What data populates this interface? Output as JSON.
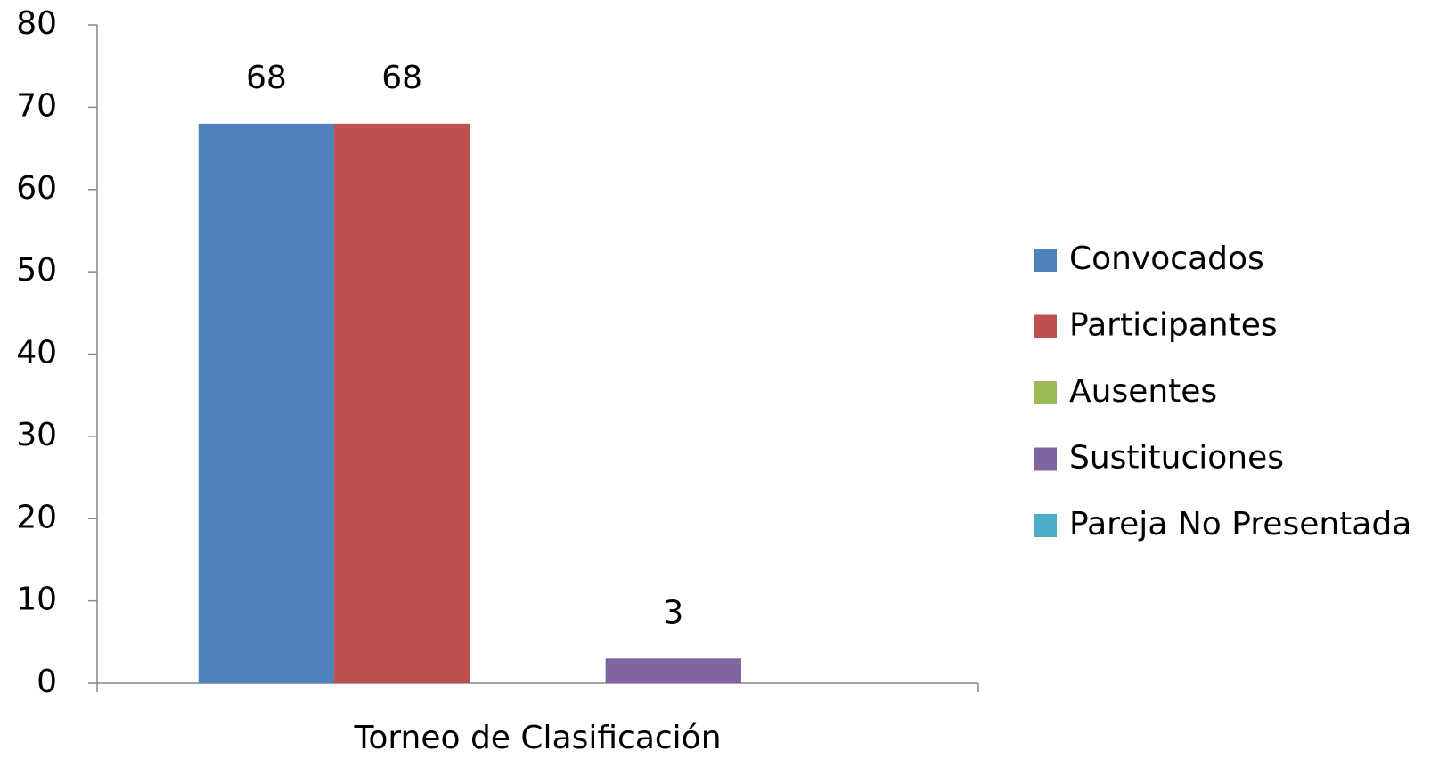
{
  "chart_data": {
    "type": "bar",
    "categories": [
      "Torneo de Clasificación"
    ],
    "series": [
      {
        "name": "Convocados",
        "color": "#4f81bd",
        "values": [
          68
        ]
      },
      {
        "name": "Participantes",
        "color": "#c0504d",
        "values": [
          68
        ]
      },
      {
        "name": "Ausentes",
        "color": "#9bbb59",
        "values": [
          null
        ]
      },
      {
        "name": "Sustituciones",
        "color": "#8064a2",
        "values": [
          3
        ]
      },
      {
        "name": "Pareja No Presentada",
        "color": "#4bacc6",
        "values": [
          null
        ]
      }
    ],
    "ylim": [
      0,
      80
    ],
    "yticks": [
      0,
      10,
      20,
      30,
      40,
      50,
      60,
      70,
      80
    ],
    "grid": false,
    "legend": "right",
    "data_labels": true
  }
}
